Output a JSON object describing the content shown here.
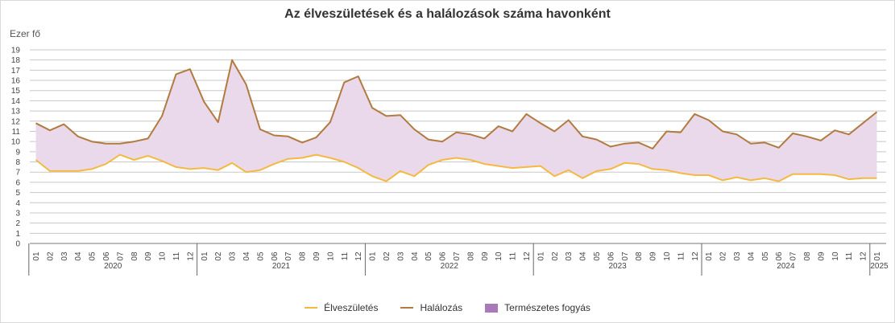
{
  "chart_data": {
    "type": "area",
    "title": "Az élveszületések és a halálozások száma havonként",
    "ylabel": "Ezer fő",
    "ylim": [
      0,
      19
    ],
    "yticks": [
      "0",
      "1",
      "2",
      "3",
      "4",
      "5",
      "6",
      "7",
      "8",
      "9",
      "10",
      "11",
      "12",
      "13",
      "14",
      "15",
      "16",
      "17",
      "18",
      "19"
    ],
    "month_labels": [
      "01",
      "02",
      "03",
      "04",
      "05",
      "06",
      "07",
      "08",
      "09",
      "10",
      "11",
      "12"
    ],
    "last_month_label": "01",
    "years": [
      "2020",
      "2021",
      "2022",
      "2023",
      "2024",
      "2025"
    ],
    "grid": true,
    "legend_position": "bottom",
    "series": [
      {
        "name": "Élveszületés",
        "color": "#f5b942",
        "values": [
          8.2,
          7.1,
          7.1,
          7.1,
          7.3,
          7.8,
          8.7,
          8.2,
          8.6,
          8.1,
          7.5,
          7.3,
          7.4,
          7.2,
          7.9,
          7.0,
          7.2,
          7.8,
          8.3,
          8.4,
          8.7,
          8.4,
          8.0,
          7.4,
          6.6,
          6.1,
          7.1,
          6.6,
          7.7,
          8.2,
          8.4,
          8.2,
          7.8,
          7.6,
          7.4,
          7.5,
          7.6,
          6.6,
          7.2,
          6.4,
          7.1,
          7.3,
          7.9,
          7.8,
          7.3,
          7.2,
          6.9,
          6.7,
          6.7,
          6.2,
          6.5,
          6.2,
          6.4,
          6.1,
          6.8,
          6.8,
          6.8,
          6.7,
          6.3,
          6.4,
          6.4
        ]
      },
      {
        "name": "Halálozás",
        "color": "#b37a3f",
        "values": [
          11.8,
          11.1,
          11.7,
          10.5,
          10.0,
          9.8,
          9.8,
          10.0,
          10.3,
          12.5,
          16.6,
          17.1,
          13.9,
          11.9,
          18.0,
          15.6,
          11.2,
          10.6,
          10.5,
          9.9,
          10.4,
          11.9,
          15.8,
          16.4,
          13.3,
          12.5,
          12.6,
          11.2,
          10.2,
          10.0,
          10.9,
          10.7,
          10.3,
          11.5,
          11.0,
          12.7,
          11.8,
          11.0,
          12.1,
          10.5,
          10.2,
          9.5,
          9.8,
          9.9,
          9.3,
          11.0,
          10.9,
          12.7,
          12.1,
          11.0,
          10.7,
          9.8,
          9.9,
          9.4,
          10.8,
          10.5,
          10.1,
          11.1,
          10.7,
          11.8,
          12.9
        ]
      }
    ],
    "fill": {
      "name": "Természetes fogyás",
      "color": "#e9d9ea",
      "legend_color": "#a97aba"
    }
  }
}
